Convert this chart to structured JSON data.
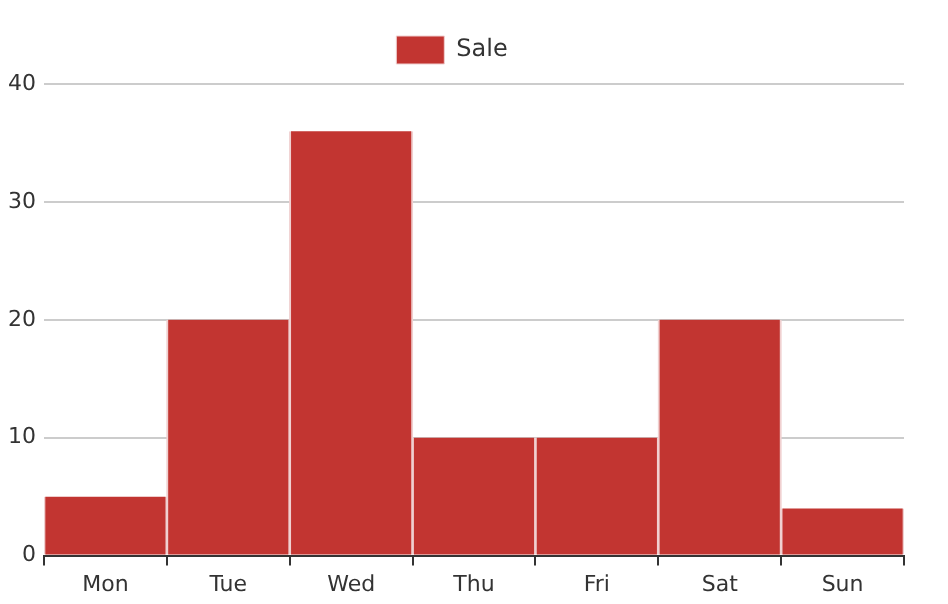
{
  "chart_data": {
    "type": "bar",
    "categories": [
      "Mon",
      "Tue",
      "Wed",
      "Thu",
      "Fri",
      "Sat",
      "Sun"
    ],
    "series": [
      {
        "name": "Sale",
        "color": "#c23531",
        "values": [
          5,
          20,
          36,
          10,
          10,
          20,
          4
        ]
      }
    ],
    "ylim": [
      0,
      40
    ],
    "yticks": [
      0,
      10,
      20,
      30,
      40
    ],
    "grid": "y",
    "legend": "top"
  }
}
